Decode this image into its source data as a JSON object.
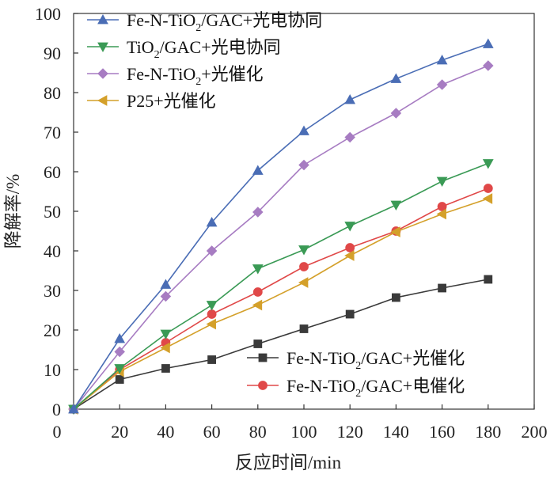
{
  "chart_data": {
    "type": "line",
    "xlabel": "反应时间/min",
    "ylabel": "降解率/%",
    "xlim": [
      0,
      200
    ],
    "ylim": [
      0,
      100
    ],
    "xticks": [
      0,
      20,
      40,
      60,
      80,
      100,
      120,
      140,
      160,
      180,
      200
    ],
    "yticks": [
      0,
      10,
      20,
      30,
      40,
      50,
      60,
      70,
      80,
      90,
      100
    ],
    "x": [
      0,
      20,
      40,
      60,
      80,
      100,
      120,
      140,
      160,
      180
    ],
    "grid": false,
    "series": [
      {
        "name": "Fe-N-TiO₂/GAC+光电协同",
        "legend": [
          "Fe-N-TiO",
          "2",
          "/GAC+光电协同"
        ],
        "legend_position": "top-left",
        "color": "#4a6db5",
        "marker": "triangle-up",
        "values": [
          0,
          17.8,
          31.5,
          47.2,
          60.3,
          70.3,
          78.2,
          83.5,
          88.2,
          92.3
        ]
      },
      {
        "name": "TiO₂/GAC+光电协同",
        "legend": [
          "TiO",
          "2",
          "/GAC+光电协同"
        ],
        "legend_position": "top-left",
        "color": "#3a9a55",
        "marker": "triangle-down",
        "values": [
          0,
          10.3,
          19.0,
          26.3,
          35.5,
          40.3,
          46.3,
          51.6,
          57.6,
          62.1
        ]
      },
      {
        "name": "Fe-N-TiO₂+光催化",
        "legend": [
          "Fe-N-TiO",
          "2",
          "+光催化"
        ],
        "legend_position": "top-left",
        "color": "#a77cc2",
        "marker": "diamond",
        "values": [
          0,
          14.5,
          28.5,
          40.0,
          49.8,
          61.7,
          68.7,
          74.8,
          82.0,
          86.8
        ]
      },
      {
        "name": "P25+光催化",
        "legend": [
          "P25+光催化",
          "",
          ""
        ],
        "legend_position": "top-left",
        "color": "#d4a02a",
        "marker": "triangle-left",
        "values": [
          0,
          9.5,
          15.5,
          21.5,
          26.3,
          32.0,
          38.8,
          44.8,
          49.3,
          53.2
        ]
      },
      {
        "name": "Fe-N-TiO₂/GAC+光催化",
        "legend": [
          "Fe-N-TiO",
          "2",
          "/GAC+光催化"
        ],
        "legend_position": "bottom-right",
        "color": "#3a3a3a",
        "marker": "square",
        "values": [
          0,
          7.5,
          10.3,
          12.5,
          16.5,
          20.3,
          24.0,
          28.2,
          30.6,
          32.8
        ]
      },
      {
        "name": "Fe-N-TiO₂/GAC+电催化",
        "legend": [
          "Fe-N-TiO",
          "2",
          "/GAC+电催化"
        ],
        "legend_position": "bottom-right",
        "color": "#e04848",
        "marker": "circle",
        "values": [
          0,
          10.0,
          16.8,
          24.0,
          29.6,
          36.0,
          40.8,
          45.0,
          51.2,
          55.8
        ]
      }
    ]
  }
}
